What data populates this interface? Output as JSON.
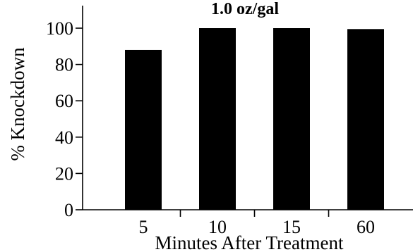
{
  "chart_data": {
    "type": "bar",
    "title": "1.0 oz/gal",
    "xlabel": "Minutes After Treatment",
    "ylabel": "% Knockdown",
    "categories": [
      "5",
      "10",
      "15",
      "60"
    ],
    "values": [
      88,
      100,
      100,
      99.5
    ],
    "ylim": [
      0,
      100
    ],
    "yticks": [
      0,
      20,
      40,
      60,
      80,
      100
    ],
    "bar_color": "#000000",
    "grid": false,
    "legend": "none"
  }
}
